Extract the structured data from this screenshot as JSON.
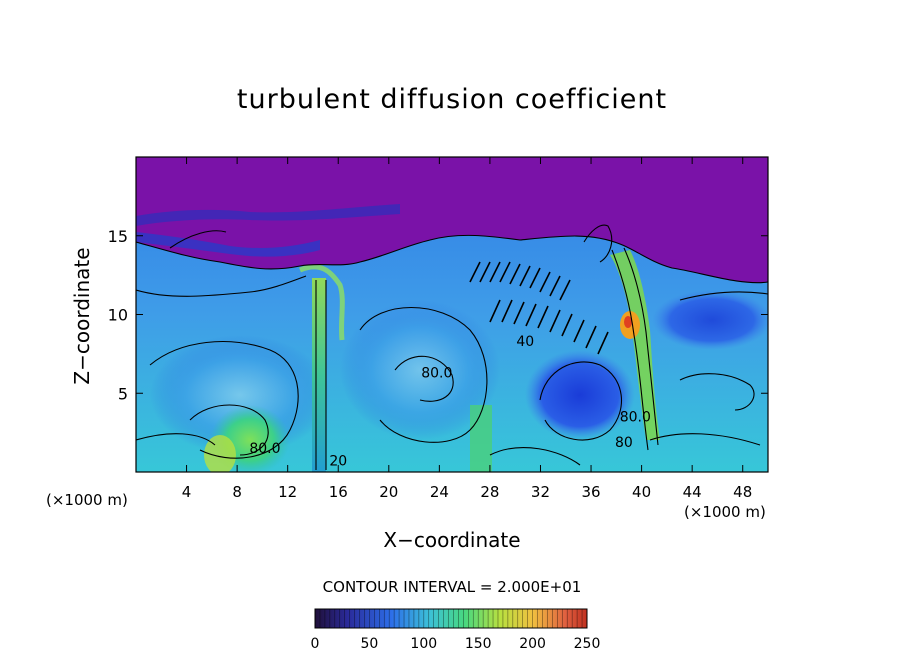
{
  "chart_data": {
    "type": "heatmap",
    "title": "turbulent diffusion coefficient",
    "xlabel": "X−coordinate",
    "ylabel": "Z−coordinate",
    "x_unit_left": "(×1000 m)",
    "x_unit_right": "(×1000 m)",
    "xlim": [
      0,
      50
    ],
    "ylim": [
      0,
      20
    ],
    "x_ticks": [
      4,
      8,
      12,
      16,
      20,
      24,
      28,
      32,
      36,
      40,
      44,
      48
    ],
    "y_ticks": [
      5,
      10,
      15
    ],
    "contour_interval_text": "CONTOUR INTERVAL = 2.000E+01",
    "colorbar": {
      "range": [
        0,
        250
      ],
      "ticks": [
        0,
        50,
        100,
        150,
        200,
        250
      ]
    },
    "contour_labels": [
      {
        "text": "80.0",
        "x": 10.2,
        "y": 1.2
      },
      {
        "text": "20",
        "x": 16.0,
        "y": 0.4
      },
      {
        "text": "80.0",
        "x": 23.8,
        "y": 6.0
      },
      {
        "text": "40",
        "x": 30.8,
        "y": 8.0
      },
      {
        "text": "80",
        "x": 38.6,
        "y": 1.6
      },
      {
        "text": "80.0",
        "x": 39.5,
        "y": 3.2
      }
    ]
  }
}
